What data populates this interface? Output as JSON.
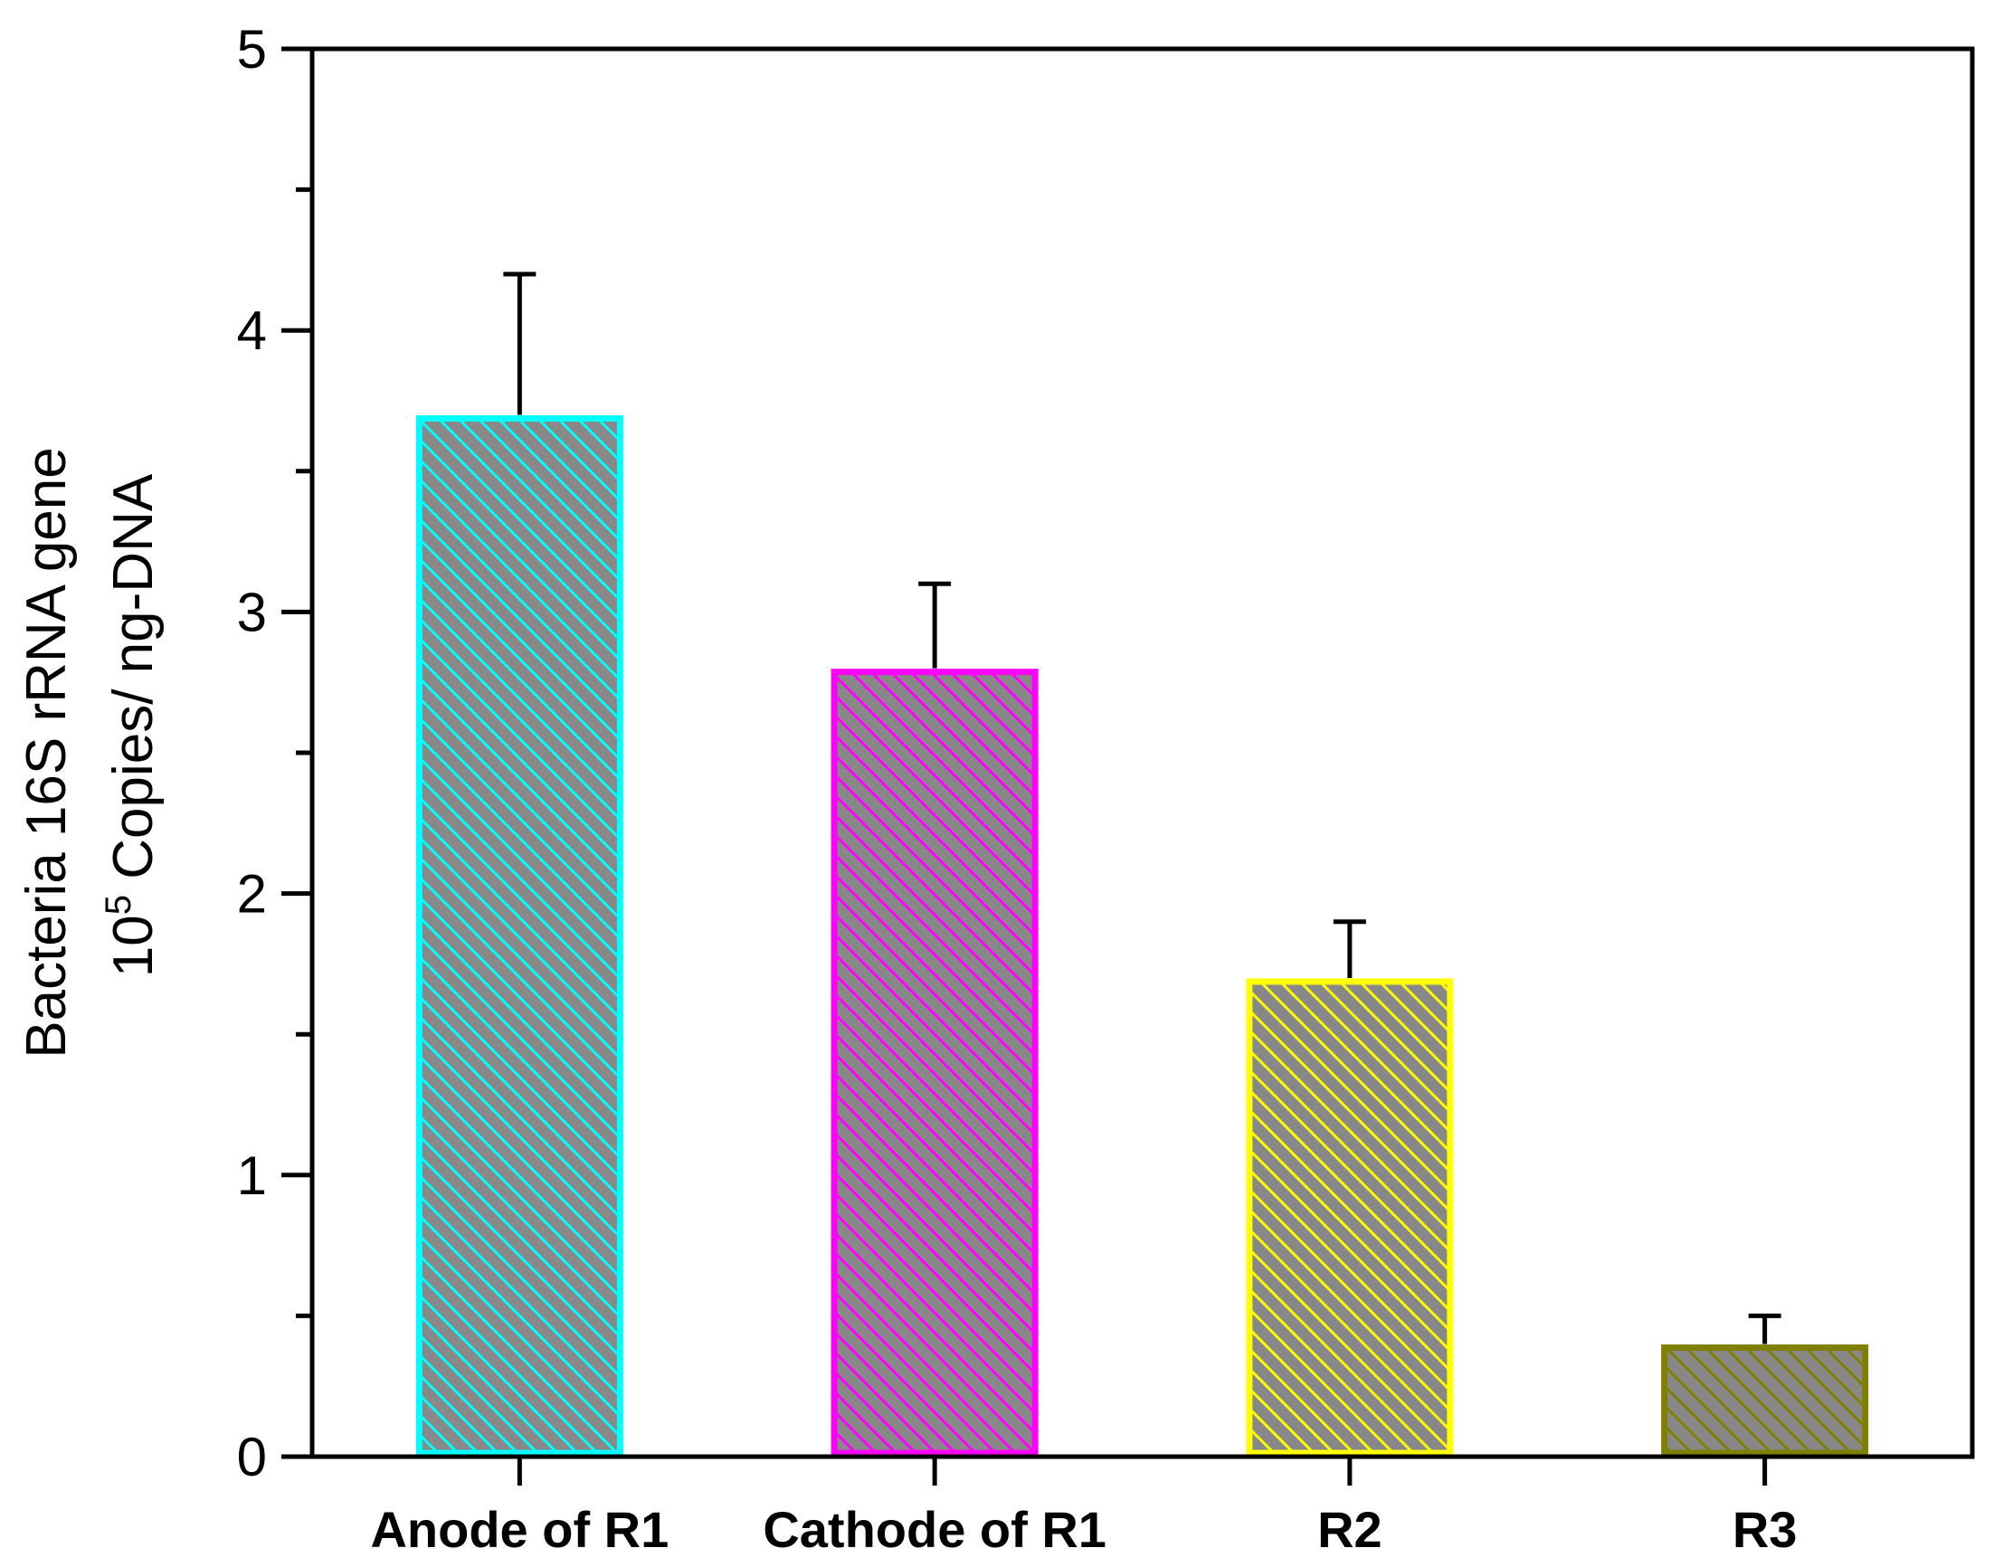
{
  "chart_data": {
    "type": "bar",
    "title": "",
    "xlabel": "",
    "ylabel_line1": "Bacteria 16S rRNA gene",
    "ylabel_line2_prefix": "10",
    "ylabel_line2_sup": "5",
    "ylabel_line2_suffix": " Copies/ ng-DNA",
    "ylim": [
      0,
      5
    ],
    "yticks": [
      0,
      1,
      2,
      3,
      4,
      5
    ],
    "ytick_labels": [
      "0",
      "1",
      "2",
      "3",
      "4",
      "5"
    ],
    "categories": [
      "Anode of R1",
      "Cathode of R1",
      "R2",
      "R3"
    ],
    "values": [
      3.7,
      2.8,
      1.7,
      0.4
    ],
    "errors": [
      0.5,
      0.3,
      0.2,
      0.1
    ],
    "bar_fill": "#888888",
    "bar_colors": [
      "#00FFFF",
      "#FF00FF",
      "#FFFF00",
      "#808000"
    ],
    "grid": false,
    "legend": "none"
  }
}
